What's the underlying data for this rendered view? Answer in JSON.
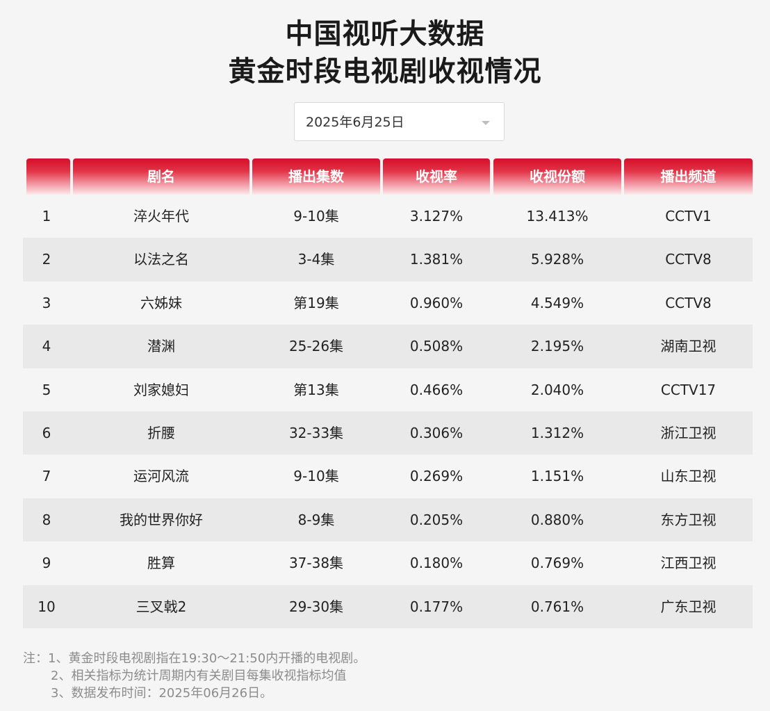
{
  "title": {
    "line1": "中国视听大数据",
    "line2": "黄金时段电视剧收视情况"
  },
  "date_select": {
    "value": "2025年6月25日"
  },
  "table": {
    "headers": [
      "",
      "剧名",
      "播出集数",
      "收视率",
      "收视份额",
      "播出频道"
    ],
    "rows": [
      {
        "rank": "1",
        "name": "淬火年代",
        "episodes": "9-10集",
        "rating": "3.127%",
        "share": "13.413%",
        "channel": "CCTV1"
      },
      {
        "rank": "2",
        "name": "以法之名",
        "episodes": "3-4集",
        "rating": "1.381%",
        "share": "5.928%",
        "channel": "CCTV8"
      },
      {
        "rank": "3",
        "name": "六姊妹",
        "episodes": "第19集",
        "rating": "0.960%",
        "share": "4.549%",
        "channel": "CCTV8"
      },
      {
        "rank": "4",
        "name": "潜渊",
        "episodes": "25-26集",
        "rating": "0.508%",
        "share": "2.195%",
        "channel": "湖南卫视"
      },
      {
        "rank": "5",
        "name": "刘家媳妇",
        "episodes": "第13集",
        "rating": "0.466%",
        "share": "2.040%",
        "channel": "CCTV17"
      },
      {
        "rank": "6",
        "name": "折腰",
        "episodes": "32-33集",
        "rating": "0.306%",
        "share": "1.312%",
        "channel": "浙江卫视"
      },
      {
        "rank": "7",
        "name": "运河风流",
        "episodes": "9-10集",
        "rating": "0.269%",
        "share": "1.151%",
        "channel": "山东卫视"
      },
      {
        "rank": "8",
        "name": "我的世界你好",
        "episodes": "8-9集",
        "rating": "0.205%",
        "share": "0.880%",
        "channel": "东方卫视"
      },
      {
        "rank": "9",
        "name": "胜算",
        "episodes": "37-38集",
        "rating": "0.180%",
        "share": "0.769%",
        "channel": "江西卫视"
      },
      {
        "rank": "10",
        "name": "三叉戟2",
        "episodes": "29-30集",
        "rating": "0.177%",
        "share": "0.761%",
        "channel": "广东卫视"
      }
    ]
  },
  "notes": [
    "注：1、黄金时段电视剧指在19:30～21:50内开播的电视剧。",
    "2、相关指标为统计周期内有关剧目每集收视指标均值",
    "3、数据发布时间：2025年06月26日。"
  ],
  "colors": {
    "header_red": "#d4102a",
    "page_bg": "#f5f5f5",
    "alt_row_bg": "#e9e9e9"
  }
}
